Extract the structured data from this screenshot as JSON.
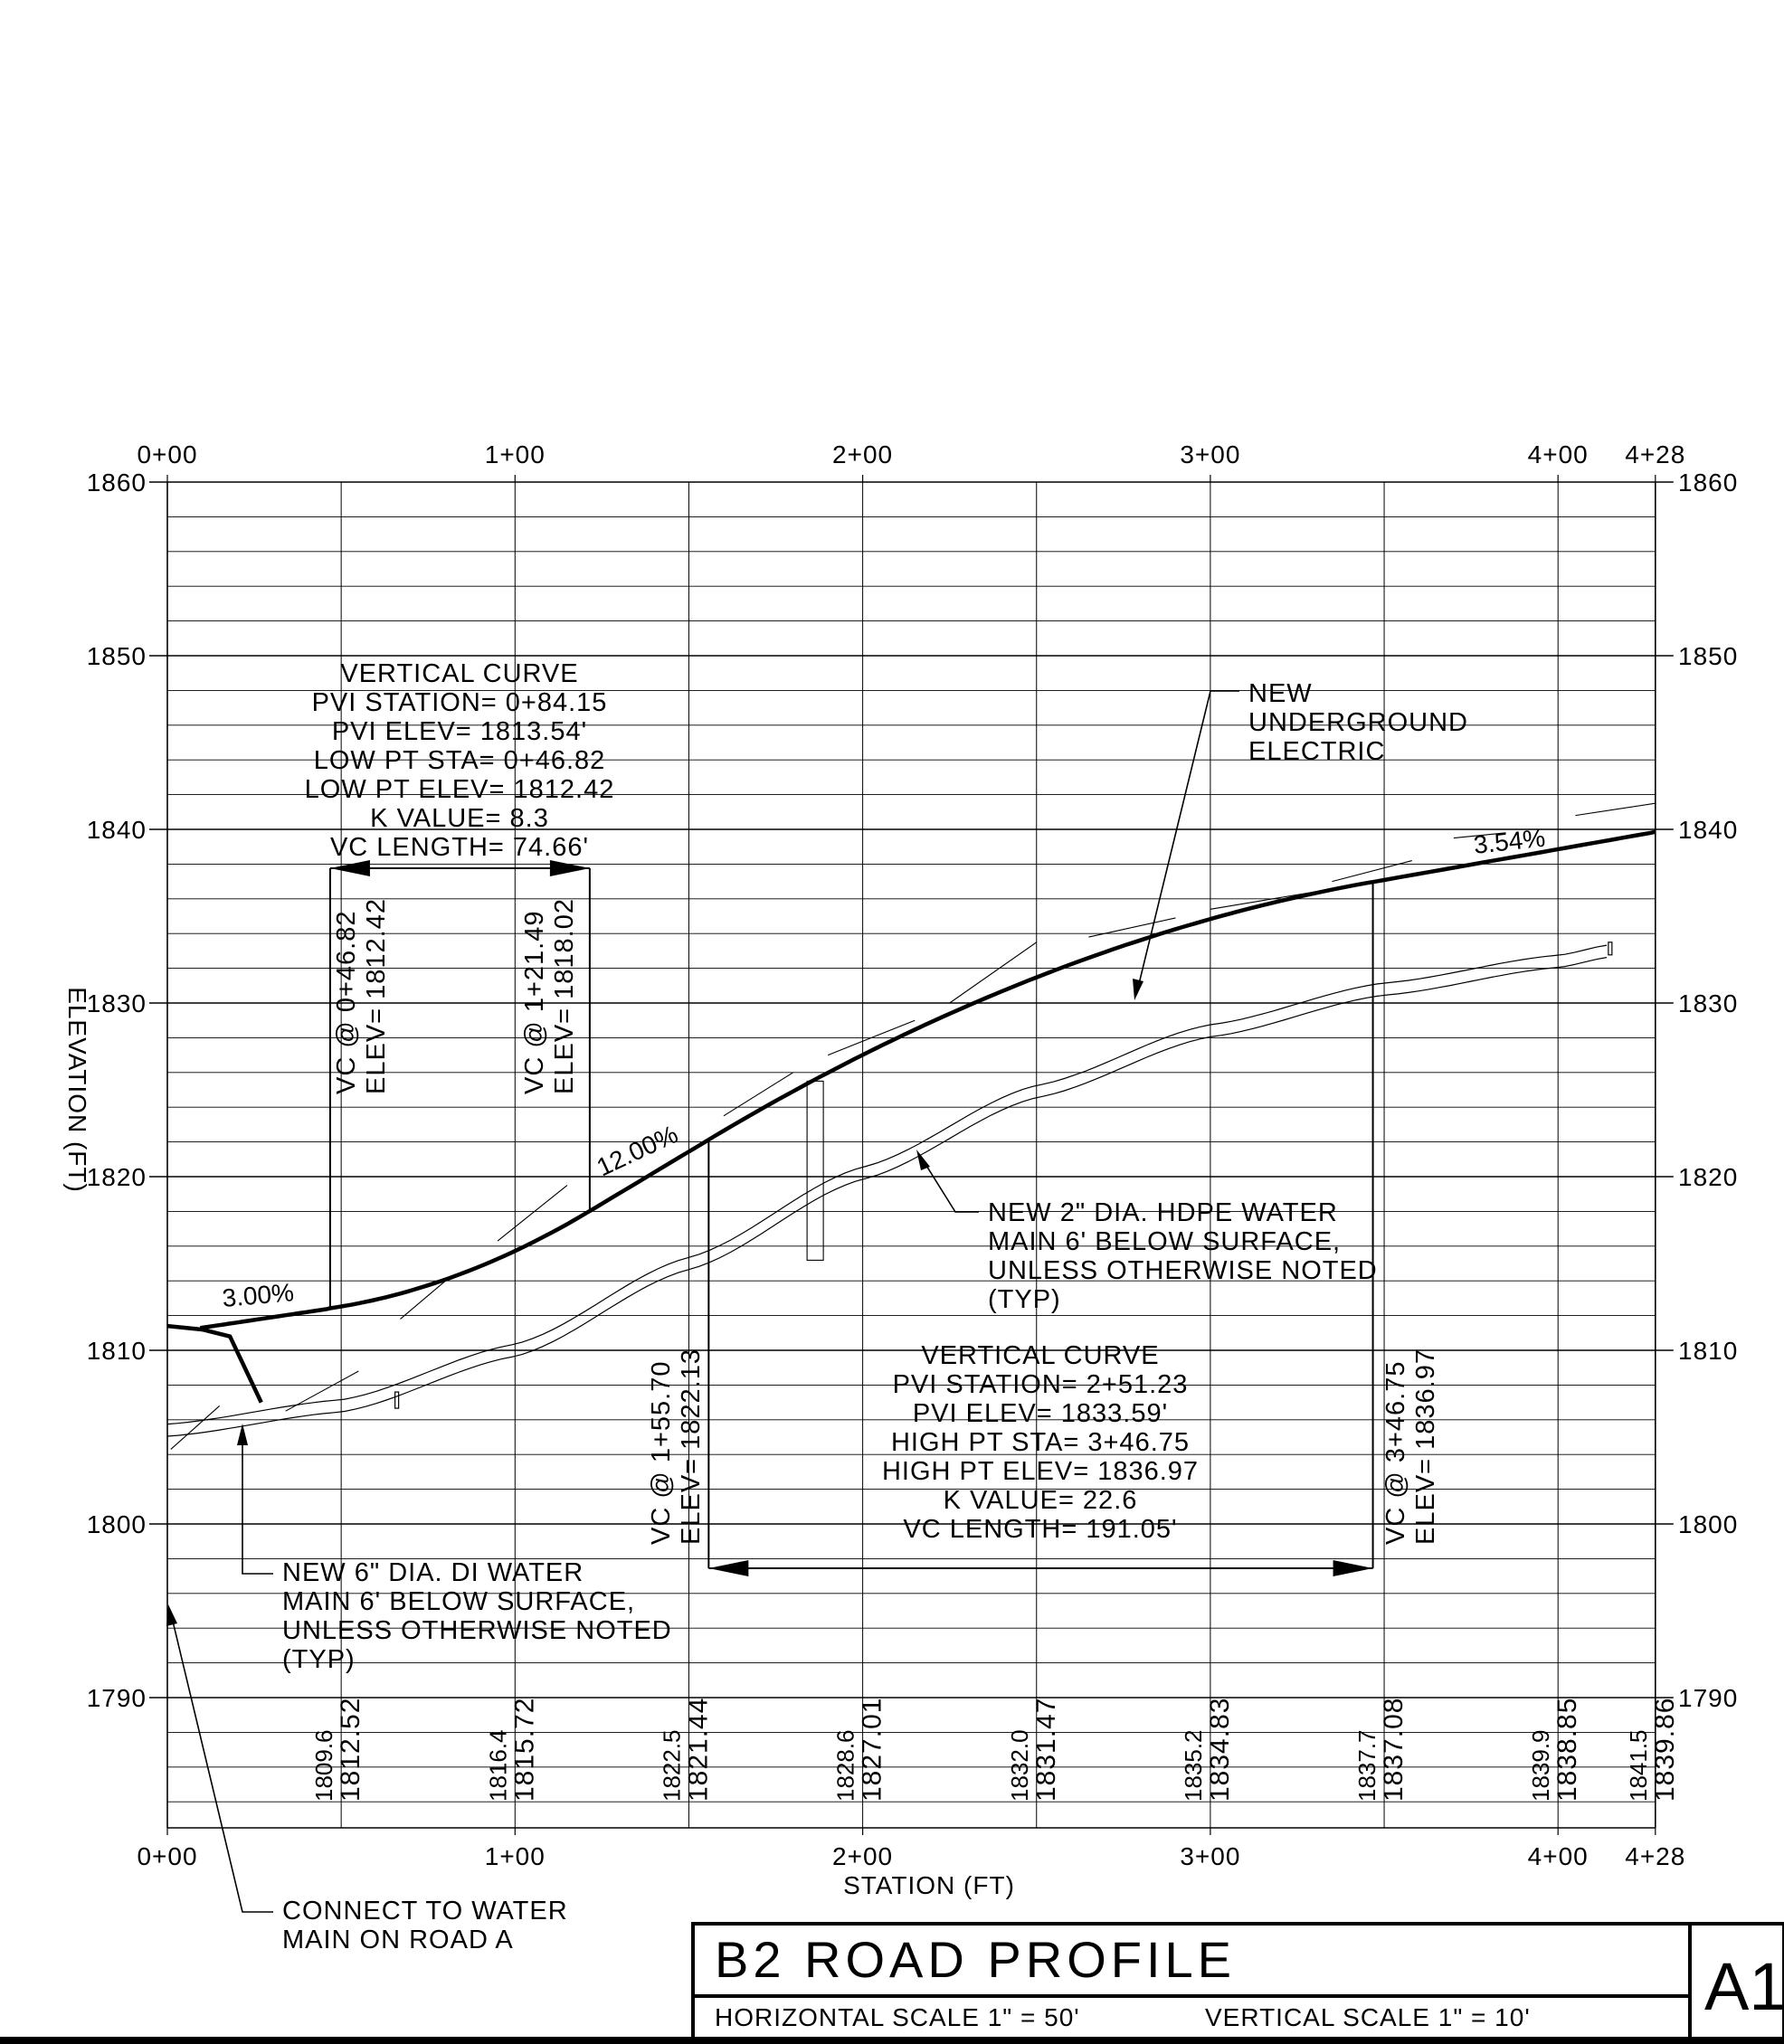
{
  "drawing": {
    "title": "B2 ROAD PROFILE",
    "horizontal_scale": "HORIZONTAL SCALE  1\" = 50'",
    "vertical_scale": "VERTICAL SCALE  1\" = 10'",
    "sheet_id": "A1"
  },
  "axes": {
    "x_label": "STATION (FT)",
    "y_label": "ELEVATION (FT)",
    "station_ticks": [
      "0+00",
      "1+00",
      "2+00",
      "3+00",
      "4+00",
      "4+28"
    ],
    "station_values": [
      0,
      100,
      200,
      300,
      400,
      428
    ],
    "elevation_ticks": [
      "1860",
      "1850",
      "1840",
      "1830",
      "1820",
      "1810",
      "1800",
      "1790"
    ],
    "elevation_values": [
      1860,
      1850,
      1840,
      1830,
      1820,
      1810,
      1800,
      1790
    ],
    "x_range": [
      0,
      428
    ],
    "y_range": [
      1782.5,
      1860
    ]
  },
  "grades": [
    "3.00%",
    "12.00%",
    "3.54%"
  ],
  "vertical_curves": [
    {
      "lines": [
        "VERTICAL CURVE",
        "PVI STATION= 0+84.15",
        "PVI ELEV= 1813.54'",
        "LOW PT STA= 0+46.82",
        "LOW PT ELEV= 1812.42",
        "K VALUE= 8.3",
        "VC LENGTH= 74.66'"
      ],
      "start_label": [
        "VC @ 0+46.82",
        "ELEV= 1812.42"
      ],
      "end_label": [
        "VC @ 1+21.49",
        "ELEV= 1818.02"
      ]
    },
    {
      "lines": [
        "VERTICAL CURVE",
        "PVI STATION= 2+51.23",
        "PVI ELEV= 1833.59'",
        "HIGH PT STA= 3+46.75",
        "HIGH PT ELEV= 1836.97",
        "K VALUE= 22.6",
        "VC LENGTH= 191.05'"
      ],
      "start_label": [
        "VC @ 1+55.70",
        "ELEV= 1822.13"
      ],
      "end_label": [
        "VC @ 3+46.75",
        "ELEV= 1836.97"
      ]
    }
  ],
  "notes": {
    "electric": [
      "NEW",
      "UNDERGROUND",
      "ELECTRIC"
    ],
    "hdpe_water": [
      "NEW 2\" DIA. HDPE WATER",
      "MAIN 6' BELOW SURFACE,",
      "UNLESS OTHERWISE NOTED",
      "(TYP)"
    ],
    "di_water": [
      "NEW 6\" DIA. DI WATER",
      "MAIN 6' BELOW SURFACE,",
      "UNLESS OTHERWISE NOTED",
      "(TYP)"
    ],
    "connect": [
      "CONNECT TO WATER",
      "MAIN ON ROAD A"
    ]
  },
  "elevation_table": [
    {
      "station": 50,
      "existing": "1809.6",
      "proposed": "1812.52"
    },
    {
      "station": 100,
      "existing": "1816.4",
      "proposed": "1815.72"
    },
    {
      "station": 150,
      "existing": "1822.5",
      "proposed": "1821.44"
    },
    {
      "station": 200,
      "existing": "1828.6",
      "proposed": "1827.01"
    },
    {
      "station": 250,
      "existing": "1832.0",
      "proposed": "1831.47"
    },
    {
      "station": 300,
      "existing": "1835.2",
      "proposed": "1834.83"
    },
    {
      "station": 350,
      "existing": "1837.7",
      "proposed": "1837.08"
    },
    {
      "station": 400,
      "existing": "1839.9",
      "proposed": "1838.85"
    },
    {
      "station": 428,
      "existing": "1841.5",
      "proposed": "1839.86"
    }
  ],
  "chart_data": {
    "type": "line",
    "xlabel": "STATION (FT)",
    "ylabel": "ELEVATION (FT)",
    "xlim": [
      0,
      428
    ],
    "ylim": [
      1782.5,
      1860
    ],
    "grid": true,
    "series": [
      {
        "x": [
          0,
          10,
          47,
          100,
          121.5,
          155.7,
          200,
          250,
          300,
          346.75,
          428
        ],
        "y": [
          1811.4,
          1811.2,
          1812.42,
          1815.72,
          1818.02,
          1822.13,
          1827.01,
          1831.47,
          1834.83,
          1836.97,
          1839.86
        ]
      },
      {
        "x": [
          0,
          50,
          100,
          150,
          200,
          250,
          300,
          350,
          400,
          415
        ],
        "y": [
          1805.4,
          1806.8,
          1810.0,
          1815.0,
          1820.2,
          1824.9,
          1828.4,
          1830.8,
          1832.4,
          1833.0
        ]
      }
    ]
  }
}
